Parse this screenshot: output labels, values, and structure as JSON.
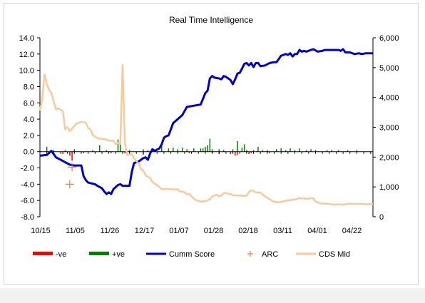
{
  "chart_data": {
    "type": "line",
    "title": "Real Time Intelligence",
    "x_categories": [
      "10/15",
      "11/05",
      "11/26",
      "12/17",
      "01/07",
      "01/28",
      "02/18",
      "03/11",
      "04/01",
      "04/22"
    ],
    "y_left": {
      "min": -8,
      "max": 14,
      "ticks": [
        "-8.0",
        "-6.0",
        "-4.0",
        "-2.0",
        "0.0",
        "2.0",
        "4.0",
        "6.0",
        "8.0",
        "10.0",
        "12.0",
        "14.0"
      ]
    },
    "y_right": {
      "min": 0,
      "max": 6000,
      "ticks": [
        "0",
        "1,000",
        "2,000",
        "3,000",
        "4,000",
        "5,000",
        "6,000"
      ]
    },
    "grid": false,
    "legend_position": "bottom",
    "colors": {
      "neg": "#ff0000",
      "pos": "#008000",
      "cumm": "#0000cc",
      "arc": "#e08040",
      "cds": "#f7c99b"
    },
    "series": [
      {
        "name": "Cumm Score",
        "axis": "left",
        "points": [
          [
            0,
            -0.5
          ],
          [
            3,
            -0.4
          ],
          [
            5,
            0.1
          ],
          [
            7,
            -0.7
          ],
          [
            9,
            -1.0
          ],
          [
            11,
            -1.3
          ],
          [
            13,
            -1.6
          ],
          [
            15,
            -1.7
          ],
          [
            18,
            -1.7
          ],
          [
            19,
            -3.0
          ],
          [
            20,
            -3.5
          ],
          [
            21,
            -3.8
          ],
          [
            24,
            -4.0
          ],
          [
            25,
            -4.2
          ],
          [
            27,
            -4.5
          ],
          [
            28,
            -4.9
          ],
          [
            29,
            -5.2
          ],
          [
            30,
            -5.0
          ],
          [
            31,
            -5.2
          ],
          [
            32,
            -4.6
          ],
          [
            34,
            -4.1
          ],
          [
            35,
            -4.0
          ],
          [
            36,
            -4.2
          ],
          [
            39,
            -4.2
          ],
          [
            40,
            -2.5
          ],
          [
            41,
            -1.4
          ],
          [
            43,
            -1.2
          ],
          [
            45,
            -0.8
          ],
          [
            46,
            -0.7
          ],
          [
            47,
            -1.0
          ],
          [
            48,
            -0.2
          ],
          [
            49,
            0.3
          ],
          [
            50,
            0.1
          ],
          [
            52,
            0.4
          ],
          [
            53,
            0.9
          ],
          [
            54,
            1.7
          ],
          [
            55,
            1.9
          ],
          [
            56,
            2.0
          ],
          [
            58,
            3.5
          ],
          [
            60,
            4.0
          ],
          [
            62,
            4.5
          ],
          [
            63,
            5.0
          ],
          [
            64,
            5.5
          ],
          [
            66,
            5.6
          ],
          [
            68,
            5.7
          ],
          [
            70,
            5.8
          ],
          [
            71,
            6.5
          ],
          [
            72,
            7.2
          ],
          [
            73,
            7.5
          ],
          [
            74,
            9.0
          ],
          [
            75,
            9.3
          ],
          [
            76,
            9.1
          ],
          [
            78,
            9.0
          ],
          [
            79,
            8.9
          ],
          [
            80,
            9.3
          ],
          [
            81,
            9.2
          ],
          [
            82,
            9.0
          ],
          [
            83,
            8.8
          ],
          [
            84,
            8.3
          ],
          [
            85,
            8.9
          ],
          [
            86,
            9.6
          ],
          [
            87,
            9.7
          ],
          [
            88,
            10.2
          ],
          [
            89,
            10.8
          ],
          [
            90,
            10.9
          ],
          [
            91,
            10.6
          ],
          [
            92,
            10.9
          ],
          [
            93,
            10.4
          ],
          [
            94,
            10.9
          ],
          [
            95,
            10.9
          ],
          [
            96,
            10.5
          ],
          [
            98,
            10.6
          ],
          [
            100,
            10.9
          ],
          [
            102,
            11.0
          ],
          [
            103,
            11.0
          ],
          [
            104,
            11.4
          ],
          [
            105,
            11.8
          ],
          [
            107,
            12.0
          ],
          [
            108,
            11.9
          ],
          [
            109,
            12.1
          ],
          [
            110,
            11.7
          ],
          [
            111,
            12.0
          ],
          [
            112,
            12.0
          ],
          [
            113,
            12.5
          ],
          [
            114,
            12.3
          ],
          [
            115,
            12.4
          ],
          [
            116,
            12.3
          ],
          [
            118,
            12.5
          ],
          [
            119,
            12.6
          ],
          [
            121,
            12.3
          ],
          [
            123,
            12.4
          ],
          [
            124,
            12.5
          ],
          [
            130,
            12.5
          ],
          [
            131,
            12.4
          ],
          [
            132,
            12.6
          ],
          [
            133,
            12.2
          ],
          [
            135,
            12.2
          ],
          [
            137,
            12.0
          ],
          [
            139,
            12.1
          ],
          [
            140,
            12.0
          ],
          [
            142,
            12.1
          ],
          [
            145,
            12.1
          ]
        ]
      },
      {
        "name": "CDS Mid",
        "axis": "right",
        "points": [
          [
            0,
            3560
          ],
          [
            1,
            3950
          ],
          [
            2,
            4770
          ],
          [
            3,
            4450
          ],
          [
            4,
            4250
          ],
          [
            5,
            4150
          ],
          [
            6,
            3860
          ],
          [
            7,
            3600
          ],
          [
            8,
            3630
          ],
          [
            10,
            3540
          ],
          [
            11,
            2930
          ],
          [
            12,
            3000
          ],
          [
            13,
            2870
          ],
          [
            14,
            2950
          ],
          [
            16,
            3130
          ],
          [
            18,
            3180
          ],
          [
            20,
            3150
          ],
          [
            21,
            2970
          ],
          [
            22,
            2930
          ],
          [
            23,
            2740
          ],
          [
            24,
            2680
          ],
          [
            26,
            2610
          ],
          [
            28,
            2610
          ],
          [
            30,
            2550
          ],
          [
            32,
            2550
          ],
          [
            33,
            2430
          ],
          [
            34,
            2470
          ],
          [
            35,
            2440
          ],
          [
            36,
            5100
          ],
          [
            37,
            2440
          ],
          [
            38,
            2070
          ],
          [
            40,
            2100
          ],
          [
            41,
            1950
          ],
          [
            43,
            1780
          ],
          [
            44,
            1600
          ],
          [
            45,
            1550
          ],
          [
            46,
            1390
          ],
          [
            48,
            1290
          ],
          [
            49,
            1160
          ],
          [
            50,
            1110
          ],
          [
            52,
            1000
          ],
          [
            53,
            920
          ],
          [
            55,
            940
          ],
          [
            57,
            920
          ],
          [
            60,
            920
          ],
          [
            61,
            850
          ],
          [
            63,
            820
          ],
          [
            64,
            760
          ],
          [
            65,
            760
          ],
          [
            67,
            610
          ],
          [
            68,
            550
          ],
          [
            70,
            510
          ],
          [
            72,
            520
          ],
          [
            73,
            550
          ],
          [
            74,
            590
          ],
          [
            75,
            680
          ],
          [
            77,
            740
          ],
          [
            78,
            680
          ],
          [
            79,
            710
          ],
          [
            80,
            790
          ],
          [
            81,
            800
          ],
          [
            82,
            760
          ],
          [
            83,
            770
          ],
          [
            84,
            720
          ],
          [
            86,
            710
          ],
          [
            90,
            700
          ],
          [
            91,
            830
          ],
          [
            92,
            890
          ],
          [
            93,
            860
          ],
          [
            94,
            820
          ],
          [
            96,
            810
          ],
          [
            97,
            740
          ],
          [
            98,
            680
          ],
          [
            100,
            590
          ],
          [
            101,
            540
          ],
          [
            102,
            500
          ],
          [
            104,
            480
          ],
          [
            106,
            520
          ],
          [
            108,
            550
          ],
          [
            110,
            570
          ],
          [
            112,
            590
          ],
          [
            113,
            630
          ],
          [
            114,
            610
          ],
          [
            115,
            620
          ],
          [
            116,
            590
          ],
          [
            118,
            620
          ],
          [
            119,
            620
          ],
          [
            120,
            510
          ],
          [
            122,
            450
          ],
          [
            124,
            440
          ],
          [
            126,
            430
          ],
          [
            128,
            400
          ],
          [
            130,
            420
          ],
          [
            132,
            400
          ],
          [
            134,
            440
          ],
          [
            136,
            430
          ],
          [
            138,
            420
          ],
          [
            140,
            430
          ],
          [
            142,
            410
          ],
          [
            145,
            430
          ]
        ]
      },
      {
        "name": "ARC",
        "axis": "left",
        "marker": "plus",
        "points": [
          [
            14,
            -1.9
          ],
          [
            13,
            -4.0
          ]
        ]
      },
      {
        "name": "-ve",
        "type": "bar",
        "axis": "left",
        "points": [
          [
            10,
            -0.3
          ],
          [
            13,
            -0.5
          ],
          [
            14,
            -1.1
          ],
          [
            19,
            -0.2
          ],
          [
            31,
            -0.2
          ],
          [
            37,
            -0.2
          ],
          [
            45,
            -0.4
          ],
          [
            65,
            -0.2
          ],
          [
            75,
            -0.2
          ],
          [
            78,
            -0.3
          ],
          [
            83,
            -0.3
          ],
          [
            85,
            -0.5
          ],
          [
            86,
            -0.4
          ],
          [
            91,
            -0.3
          ],
          [
            92,
            -0.2
          ],
          [
            100,
            -0.2
          ]
        ]
      },
      {
        "name": "+ve",
        "type": "bar",
        "axis": "left",
        "points": [
          [
            3,
            0.6
          ],
          [
            6,
            0.2
          ],
          [
            11,
            0.2
          ],
          [
            15,
            0.3
          ],
          [
            23,
            0.2
          ],
          [
            26,
            0.8
          ],
          [
            29,
            0.2
          ],
          [
            34,
            1.5
          ],
          [
            35,
            1.3
          ],
          [
            39,
            0.2
          ],
          [
            45,
            0.3
          ],
          [
            47,
            0.2
          ],
          [
            49,
            0.3
          ],
          [
            53,
            0.7
          ],
          [
            56,
            0.4
          ],
          [
            58,
            0.5
          ],
          [
            60,
            0.3
          ],
          [
            62,
            0.5
          ],
          [
            64,
            0.3
          ],
          [
            67,
            0.4
          ],
          [
            70,
            0.4
          ],
          [
            71,
            0.4
          ],
          [
            72,
            0.6
          ],
          [
            73,
            0.8
          ],
          [
            74,
            1.6
          ],
          [
            75,
            0.3
          ],
          [
            78,
            0.3
          ],
          [
            80,
            0.2
          ],
          [
            84,
            0.3
          ],
          [
            86,
            1.3
          ],
          [
            88,
            0.5
          ],
          [
            89,
            0.9
          ],
          [
            90,
            0.2
          ],
          [
            93,
            0.2
          ],
          [
            95,
            0.6
          ],
          [
            97,
            0.2
          ],
          [
            99,
            0.2
          ],
          [
            103,
            0.3
          ],
          [
            105,
            0.4
          ],
          [
            107,
            0.2
          ],
          [
            109,
            0.4
          ],
          [
            111,
            0.2
          ],
          [
            113,
            0.4
          ],
          [
            116,
            0.2
          ],
          [
            118,
            0.3
          ],
          [
            120,
            0.2
          ],
          [
            125,
            0.2
          ],
          [
            127,
            0.2
          ],
          [
            130,
            0.2
          ],
          [
            134,
            0.2
          ],
          [
            138,
            0.2
          ]
        ]
      }
    ],
    "legend": [
      "-ve",
      "+ve",
      "Cumm Score",
      "ARC",
      "CDS Mid"
    ]
  }
}
